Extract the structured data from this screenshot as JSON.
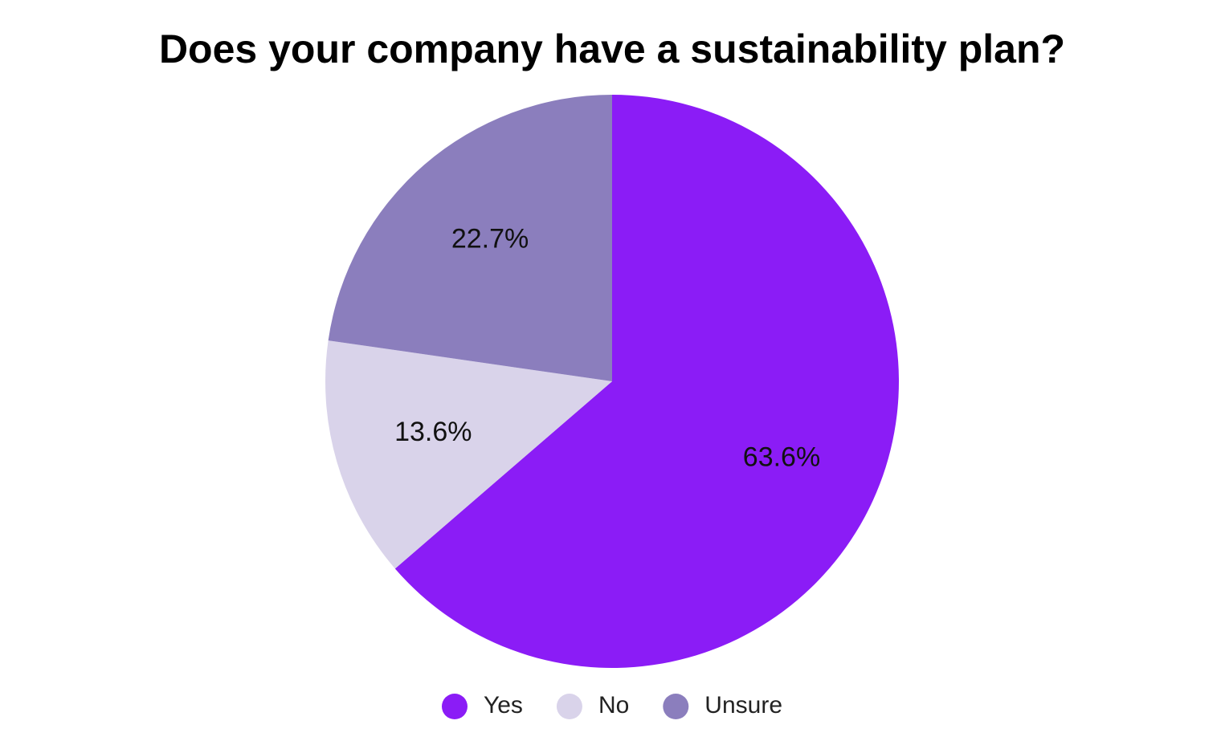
{
  "chart_data": {
    "type": "pie",
    "title": "Does your company have a sustainability plan?",
    "categories": [
      "Yes",
      "No",
      "Unsure"
    ],
    "values": [
      63.6,
      13.6,
      22.7
    ],
    "labels": [
      "63.6%",
      "13.6%",
      "22.7%"
    ],
    "colors": [
      "#8b1cf6",
      "#d9d3ea",
      "#8b7ebd"
    ],
    "start_angle_deg": 0,
    "direction": "clockwise",
    "legend_position": "bottom-center"
  }
}
